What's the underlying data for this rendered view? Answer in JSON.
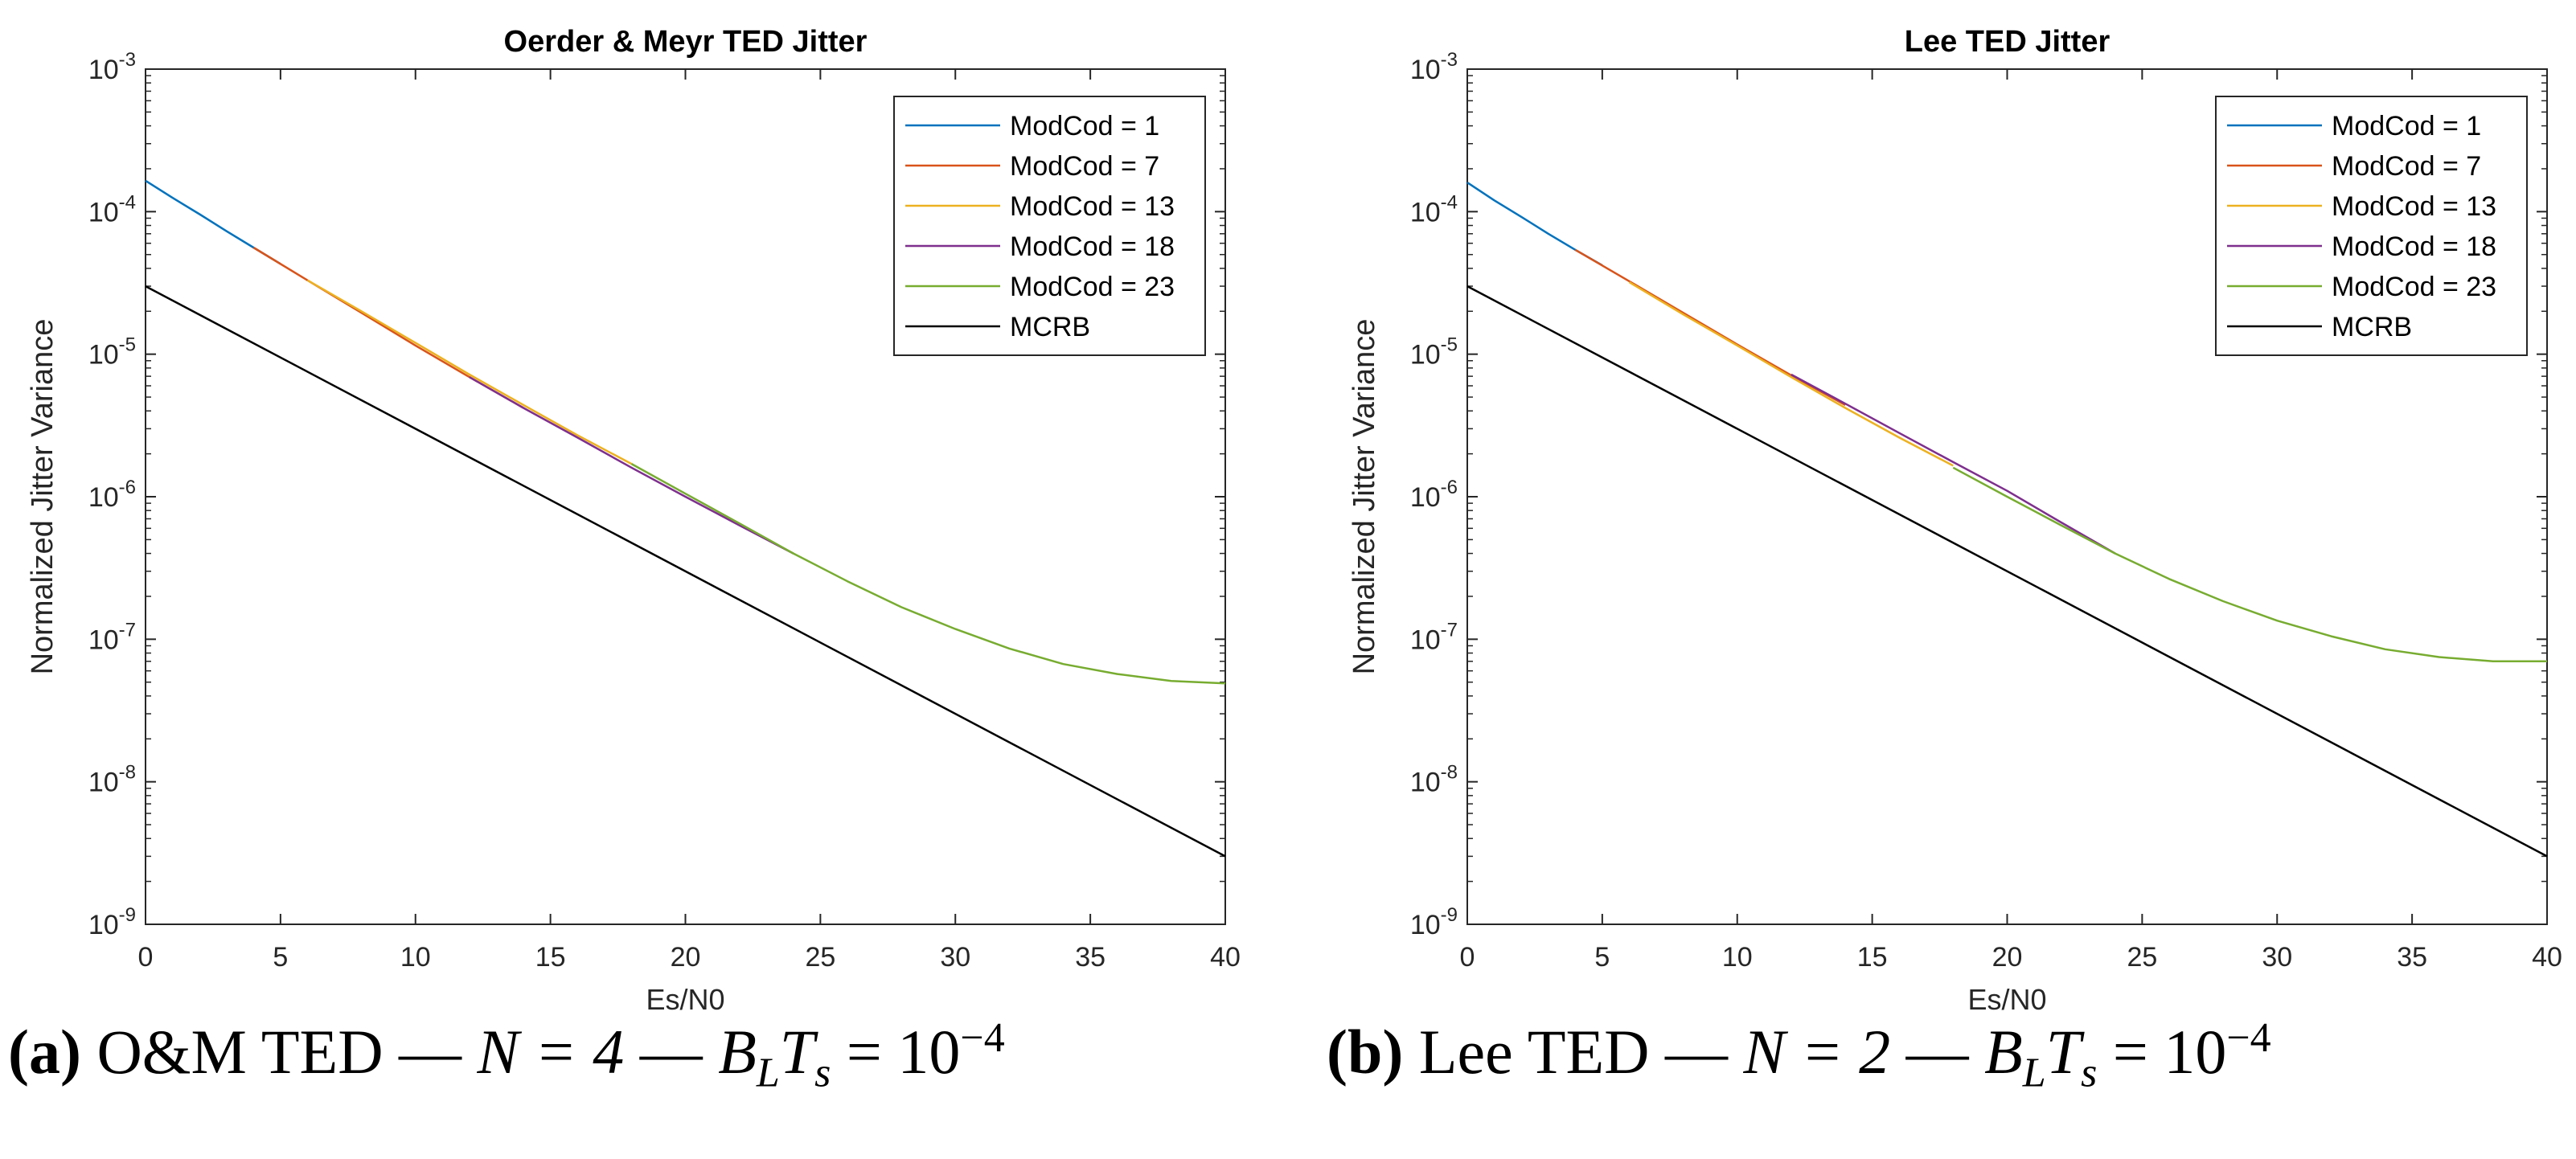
{
  "chart_data": [
    {
      "type": "line",
      "title": "Oerder & Meyr TED Jitter",
      "xlabel": "Es/N0",
      "ylabel": "Normalized Jitter Variance",
      "xlim": [
        0,
        40
      ],
      "ylim": [
        1e-09,
        0.001
      ],
      "yscale": "log",
      "xticks": [
        "0",
        "5",
        "10",
        "15",
        "20",
        "25",
        "30",
        "35",
        "40"
      ],
      "yticks": [
        "10^-9",
        "10^-8",
        "10^-7",
        "10^-6",
        "10^-5",
        "10^-4",
        "10^-3"
      ],
      "legend_position": "top-right",
      "series": [
        {
          "name": "ModCod = 1",
          "color": "#0072BD",
          "x": [
            0,
            1,
            2,
            3,
            4,
            5
          ],
          "y": [
            0.000165,
            0.000125,
            9.6e-05,
            7.3e-05,
            5.6e-05,
            4.3e-05
          ]
        },
        {
          "name": "ModCod = 7",
          "color": "#D95319",
          "x": [
            4,
            6,
            8,
            10,
            12,
            14
          ],
          "y": [
            5.6e-05,
            3.3e-05,
            1.95e-05,
            1.15e-05,
            6.9e-06,
            4.2e-06
          ]
        },
        {
          "name": "ModCod = 13",
          "color": "#EDB120",
          "x": [
            6,
            8,
            10,
            12,
            14,
            16,
            18
          ],
          "y": [
            3.3e-05,
            2e-05,
            1.2e-05,
            7.2e-06,
            4.4e-06,
            2.7e-06,
            1.7e-06
          ]
        },
        {
          "name": "ModCod = 18",
          "color": "#7E2F8E",
          "x": [
            12,
            14,
            16,
            18,
            20,
            22,
            24
          ],
          "y": [
            6.9e-06,
            4.2e-06,
            2.6e-06,
            1.6e-06,
            1e-06,
            6.3e-07,
            4e-07
          ]
        },
        {
          "name": "ModCod = 23",
          "color": "#77AC30",
          "x": [
            18,
            20,
            22,
            24,
            26,
            28,
            30,
            32,
            34,
            36,
            38,
            40
          ],
          "y": [
            1.7e-06,
            1.05e-06,
            6.5e-07,
            4e-07,
            2.55e-07,
            1.68e-07,
            1.18e-07,
            8.6e-08,
            6.7e-08,
            5.7e-08,
            5.1e-08,
            4.9e-08
          ]
        },
        {
          "name": "MCRB",
          "color": "#000000",
          "x": [
            0,
            40
          ],
          "y": [
            3e-05,
            3e-09
          ]
        }
      ]
    },
    {
      "type": "line",
      "title": "Lee TED Jitter",
      "xlabel": "Es/N0",
      "ylabel": "Normalized Jitter Variance",
      "xlim": [
        0,
        40
      ],
      "ylim": [
        1e-09,
        0.001
      ],
      "yscale": "log",
      "xticks": [
        "0",
        "5",
        "10",
        "15",
        "20",
        "25",
        "30",
        "35",
        "40"
      ],
      "yticks": [
        "10^-9",
        "10^-8",
        "10^-7",
        "10^-6",
        "10^-5",
        "10^-4",
        "10^-3"
      ],
      "legend_position": "top-right",
      "series": [
        {
          "name": "ModCod = 1",
          "color": "#0072BD",
          "x": [
            0,
            1,
            2,
            3,
            4,
            5
          ],
          "y": [
            0.00016,
            0.00012,
            9.2e-05,
            7e-05,
            5.4e-05,
            4.2e-05
          ]
        },
        {
          "name": "ModCod = 7",
          "color": "#D95319",
          "x": [
            4,
            6,
            8,
            10,
            12,
            14
          ],
          "y": [
            5.4e-05,
            3.25e-05,
            1.95e-05,
            1.17e-05,
            7.1e-06,
            4.4e-06
          ]
        },
        {
          "name": "ModCod = 13",
          "color": "#EDB120",
          "x": [
            6,
            8,
            10,
            12,
            14,
            16,
            18
          ],
          "y": [
            3.2e-05,
            1.9e-05,
            1.15e-05,
            6.9e-06,
            4.2e-06,
            2.6e-06,
            1.65e-06
          ]
        },
        {
          "name": "ModCod = 18",
          "color": "#7E2F8E",
          "x": [
            12,
            14,
            16,
            18,
            20,
            22,
            24
          ],
          "y": [
            7.2e-06,
            4.5e-06,
            2.8e-06,
            1.75e-06,
            1.1e-06,
            6.6e-07,
            4e-07
          ]
        },
        {
          "name": "ModCod = 23",
          "color": "#77AC30",
          "x": [
            18,
            20,
            22,
            24,
            26,
            28,
            30,
            32,
            34,
            36,
            38,
            40
          ],
          "y": [
            1.6e-06,
            1e-06,
            6.3e-07,
            4e-07,
            2.65e-07,
            1.85e-07,
            1.35e-07,
            1.05e-07,
            8.5e-08,
            7.5e-08,
            7e-08,
            7e-08
          ]
        },
        {
          "name": "MCRB",
          "color": "#000000",
          "x": [
            0,
            40
          ],
          "y": [
            3e-05,
            3e-09
          ]
        }
      ]
    }
  ],
  "captions": [
    {
      "tag": "(a)",
      "text": " O&M TED — ",
      "math1": "N = 4",
      "sep": " — ",
      "math2": "B",
      "sub": "L",
      "math3": "T",
      "sub2": "s",
      "eq": " = 10",
      "exp": "−4"
    },
    {
      "tag": "(b)",
      "text": " Lee TED — ",
      "math1": "N = 2",
      "sep": " — ",
      "math2": "B",
      "sub": "L",
      "math3": "T",
      "sub2": "s",
      "eq": " = 10",
      "exp": "−4"
    }
  ]
}
